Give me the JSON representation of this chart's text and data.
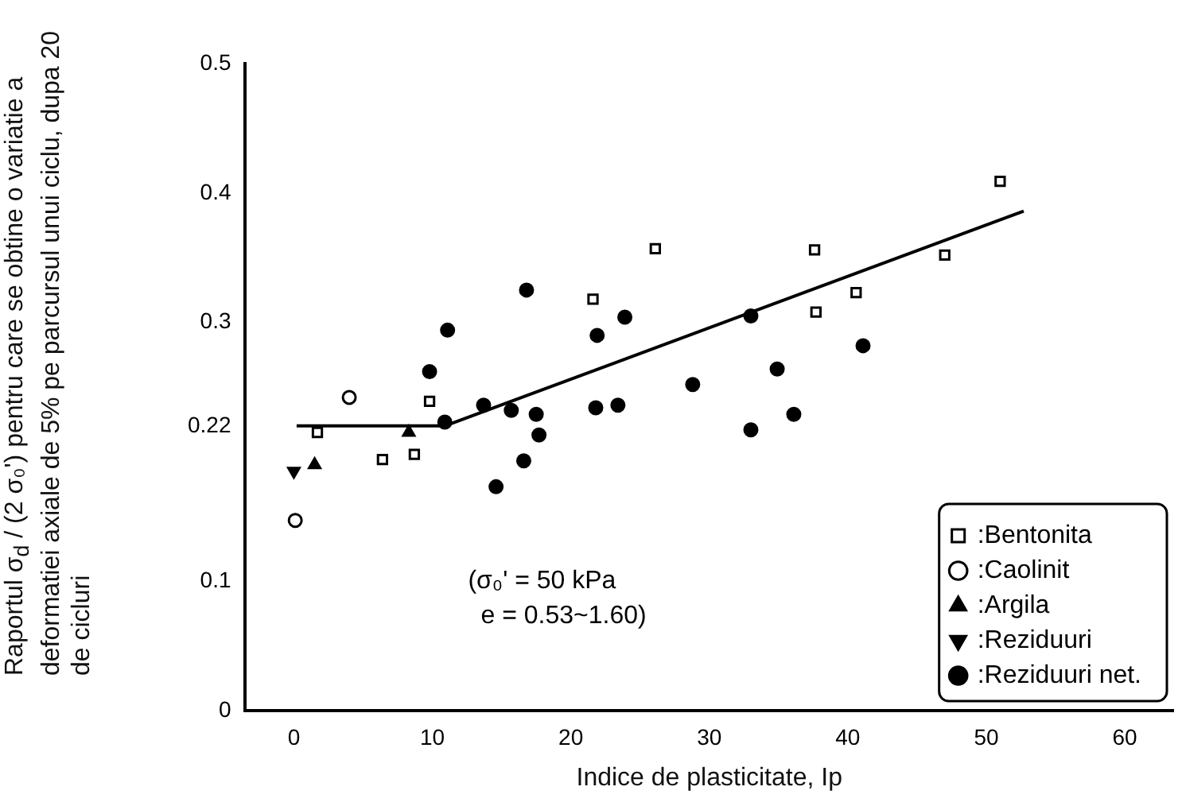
{
  "chart_data": {
    "type": "scatter",
    "xlabel": "Indice de plasticitate, Ip",
    "ylabel": "Raportul σ$_{d}$ / (2 σ₀') pentru care se obtine o variatie a deformatiei axiale de 5% pe parcursul unui ciclu, dupa 20 de cicluri",
    "xlim": [
      -3.5,
      63.5
    ],
    "xticks": [
      0,
      10,
      20,
      30,
      40,
      50,
      60
    ],
    "ylim": [
      0,
      0.5
    ],
    "yticks": [
      0,
      {
        "value": 0.1,
        "label": "0.1"
      },
      0.22,
      {
        "value": 0.3,
        "label": "0.3"
      },
      {
        "value": 0.4,
        "label": "0.4"
      },
      {
        "value": 0.5,
        "label": "0.5"
      }
    ],
    "grid": false,
    "legend": "bottom right",
    "annotations": [
      "(σ₀' = 50 kPa",
      "e = 0.53~1.60)"
    ],
    "series": [
      {
        "name": ":Bentonita",
        "color": "#000000",
        "marker": "square-open",
        "x": [
          1.7,
          6.4,
          8.7,
          9.8,
          21.6,
          26.1,
          37.6,
          37.7,
          40.6,
          47.0,
          51.0
        ],
        "values": [
          0.215,
          0.194,
          0.198,
          0.239,
          0.318,
          0.357,
          0.356,
          0.308,
          0.323,
          0.352,
          0.409
        ]
      },
      {
        "name": ":Caolinit",
        "color": "#000000",
        "marker": "circle-open",
        "x": [
          0.1,
          4.0
        ],
        "values": [
          0.147,
          0.242
        ]
      },
      {
        "name": ":Argila",
        "color": "#000000",
        "marker": "triangle",
        "x": [
          1.5,
          8.3
        ],
        "values": [
          0.19,
          0.215
        ]
      },
      {
        "name": ":Reziduuri",
        "color": "#000000",
        "marker": "triangle-down",
        "x": [
          0
        ],
        "values": [
          0.185
        ]
      },
      {
        "name": ":Reziduuri net.",
        "color": "#000000",
        "marker": "circle",
        "x": [
          9.8,
          11.1,
          10.9,
          13.7,
          14.6,
          15.7,
          16.6,
          16.8,
          17.5,
          17.7,
          21.8,
          21.9,
          23.4,
          23.9,
          28.8,
          33.0,
          33.0,
          34.9,
          36.1,
          41.1
        ],
        "values": [
          0.262,
          0.294,
          0.223,
          0.236,
          0.173,
          0.232,
          0.193,
          0.325,
          0.229,
          0.213,
          0.234,
          0.29,
          0.236,
          0.304,
          0.252,
          0.305,
          0.217,
          0.264,
          0.229,
          0.282
        ]
      },
      {
        "type": "line",
        "color": "#000000",
        "marker": "none",
        "line_style": "solid",
        "x": [
          0.2,
          10.9,
          52.7
        ],
        "values": [
          0.22,
          0.22,
          0.386
        ]
      }
    ]
  }
}
